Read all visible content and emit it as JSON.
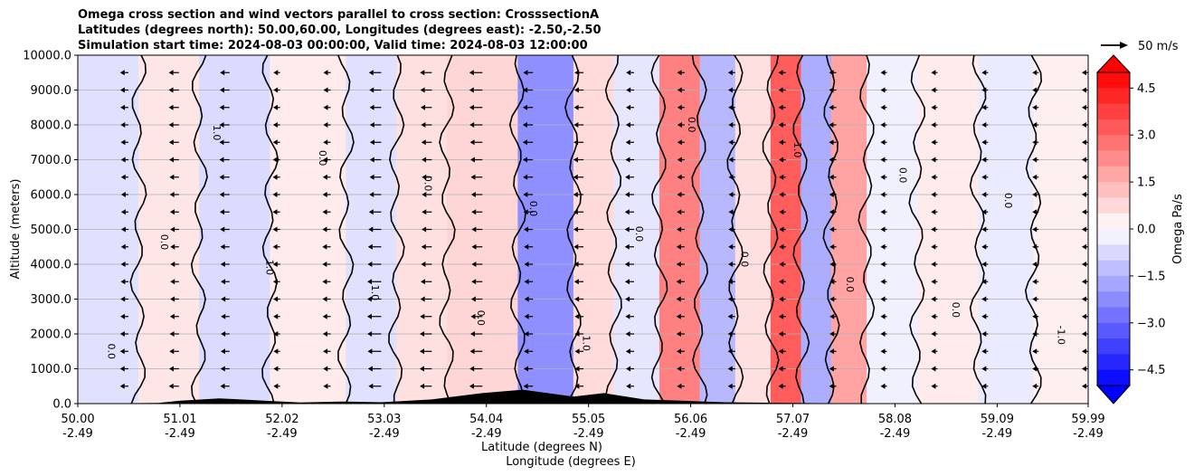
{
  "chart_data": {
    "type": "contourf",
    "title_lines": [
      "Omega cross section and wind vectors parallel to cross section: CrosssectionA",
      "Latitudes (degrees north): 50.00,60.00, Longitudes (degrees east): -2.50,-2.50",
      "Simulation start time: 2024-08-03 00:00:00, Valid time: 2024-08-03 12:00:00"
    ],
    "ylabel": "Altitude (meters)",
    "xlabel_lat": "Latitude (degrees N)",
    "xlabel_lon": "Longitude (degrees E)",
    "ylim": [
      0,
      10000
    ],
    "yticks": [
      "0.0",
      "1000.0",
      "2000.0",
      "3000.0",
      "4000.0",
      "5000.0",
      "6000.0",
      "7000.0",
      "8000.0",
      "9000.0",
      "10000.0"
    ],
    "xticks": [
      {
        "lat": "50.00",
        "lon": "-2.49"
      },
      {
        "lat": "51.01",
        "lon": "-2.49"
      },
      {
        "lat": "52.02",
        "lon": "-2.49"
      },
      {
        "lat": "53.03",
        "lon": "-2.49"
      },
      {
        "lat": "54.04",
        "lon": "-2.49"
      },
      {
        "lat": "55.05",
        "lon": "-2.49"
      },
      {
        "lat": "56.06",
        "lon": "-2.49"
      },
      {
        "lat": "57.07",
        "lon": "-2.49"
      },
      {
        "lat": "58.08",
        "lon": "-2.49"
      },
      {
        "lat": "59.09",
        "lon": "-2.49"
      },
      {
        "lat": "59.99",
        "lon": "-2.49"
      }
    ],
    "colorbar": {
      "label": "Omega Pa/s",
      "range": [
        -5.0,
        5.0
      ],
      "ticks": [
        "4.5",
        "3.0",
        "1.5",
        "0.0",
        "−1.5",
        "−3.0",
        "−4.5"
      ],
      "cmap": "bwr",
      "extend": "both"
    },
    "quiver_key": "50 m/s",
    "contour_labels": [
      "0.0",
      "0.0",
      "1.0",
      "1.0",
      "0.0",
      "1.0",
      "0.0",
      "0.0",
      "0.0",
      "1.0",
      "0.0",
      "0.0",
      "0.0",
      "1.0",
      "0.0",
      "0.0",
      "0.0",
      "0.0",
      "-1.0"
    ],
    "omega_bands": [
      {
        "lat": 50.3,
        "value": -0.6
      },
      {
        "lat": 50.9,
        "value": 0.5
      },
      {
        "lat": 51.5,
        "value": -0.7
      },
      {
        "lat": 52.3,
        "value": 0.4
      },
      {
        "lat": 53.0,
        "value": -0.6
      },
      {
        "lat": 53.3,
        "value": 0.6
      },
      {
        "lat": 54.0,
        "value": 0.8
      },
      {
        "lat": 54.7,
        "value": -2.2
      },
      {
        "lat": 55.1,
        "value": 0.7
      },
      {
        "lat": 55.5,
        "value": -0.5
      },
      {
        "lat": 56.0,
        "value": 2.5
      },
      {
        "lat": 56.3,
        "value": -1.4
      },
      {
        "lat": 56.7,
        "value": 0.6
      },
      {
        "lat": 57.0,
        "value": 3.2
      },
      {
        "lat": 57.3,
        "value": -1.6
      },
      {
        "lat": 57.6,
        "value": 1.8
      },
      {
        "lat": 58.0,
        "value": -0.3
      },
      {
        "lat": 58.6,
        "value": 0.4
      },
      {
        "lat": 59.2,
        "value": -0.4
      },
      {
        "lat": 59.7,
        "value": 0.3
      }
    ],
    "wind_vectors": [
      {
        "lat": 50.0,
        "u": -2
      },
      {
        "lat": 50.5,
        "u": -4
      },
      {
        "lat": 51.0,
        "u": -6
      },
      {
        "lat": 51.5,
        "u": -6
      },
      {
        "lat": 52.0,
        "u": -3
      },
      {
        "lat": 52.5,
        "u": -4
      },
      {
        "lat": 53.0,
        "u": -10
      },
      {
        "lat": 53.5,
        "u": -8
      },
      {
        "lat": 54.0,
        "u": -9
      },
      {
        "lat": 54.5,
        "u": -6
      },
      {
        "lat": 55.0,
        "u": -6
      },
      {
        "lat": 55.5,
        "u": -5
      },
      {
        "lat": 56.0,
        "u": -4
      },
      {
        "lat": 56.5,
        "u": -3
      },
      {
        "lat": 57.0,
        "u": -3
      },
      {
        "lat": 57.5,
        "u": -3
      },
      {
        "lat": 58.0,
        "u": -2
      },
      {
        "lat": 58.5,
        "u": -2
      },
      {
        "lat": 59.0,
        "u": -1
      },
      {
        "lat": 59.5,
        "u": -1
      },
      {
        "lat": 59.99,
        "u": -1
      }
    ],
    "terrain": [
      {
        "lat": 50.0,
        "h": 0
      },
      {
        "lat": 50.8,
        "h": 20
      },
      {
        "lat": 51.0,
        "h": 80
      },
      {
        "lat": 51.4,
        "h": 150
      },
      {
        "lat": 51.8,
        "h": 90
      },
      {
        "lat": 52.2,
        "h": 30
      },
      {
        "lat": 52.6,
        "h": 60
      },
      {
        "lat": 53.0,
        "h": 40
      },
      {
        "lat": 53.5,
        "h": 120
      },
      {
        "lat": 54.0,
        "h": 300
      },
      {
        "lat": 54.4,
        "h": 400
      },
      {
        "lat": 54.9,
        "h": 200
      },
      {
        "lat": 55.2,
        "h": 300
      },
      {
        "lat": 55.6,
        "h": 120
      },
      {
        "lat": 56.0,
        "h": 80
      },
      {
        "lat": 56.4,
        "h": 40
      },
      {
        "lat": 57.0,
        "h": 20
      },
      {
        "lat": 57.5,
        "h": 10
      },
      {
        "lat": 58.0,
        "h": 0
      },
      {
        "lat": 59.99,
        "h": 0
      }
    ]
  }
}
